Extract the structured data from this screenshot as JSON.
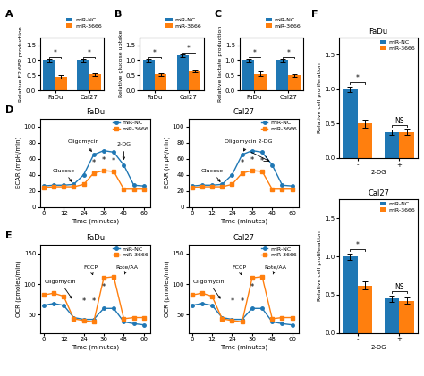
{
  "chart_data": [
    {
      "type": "bar",
      "panel_label": "A",
      "ylabel": "Relative F2,6BP production",
      "categories": [
        "FaDu",
        "Cal27"
      ],
      "series": [
        {
          "name": "miR-NC",
          "values": [
            1.0,
            1.0
          ],
          "errors": [
            0.04,
            0.04
          ]
        },
        {
          "name": "miR-3666",
          "values": [
            0.45,
            0.53
          ],
          "errors": [
            0.05,
            0.05
          ]
        }
      ],
      "ylim": [
        0,
        1.75
      ],
      "yticks": [
        {
          "value": 0,
          "label": "0.0"
        },
        {
          "value": 0.5,
          "label": "0.5"
        },
        {
          "value": 1.0,
          "label": "1.0"
        },
        {
          "value": 1.5,
          "label": "1.5"
        }
      ],
      "legend": "upper right",
      "significance": [
        "*",
        "*"
      ]
    },
    {
      "type": "bar",
      "panel_label": "B",
      "ylabel": "Relative glucose uptake",
      "categories": [
        "FaDu",
        "Cal27"
      ],
      "series": [
        {
          "name": "miR-NC",
          "values": [
            1.0,
            1.15
          ],
          "errors": [
            0.04,
            0.05
          ]
        },
        {
          "name": "miR-3666",
          "values": [
            0.53,
            0.63
          ],
          "errors": [
            0.05,
            0.04
          ]
        }
      ],
      "ylim": [
        0,
        1.75
      ],
      "yticks": [
        {
          "value": 0,
          "label": "0.0"
        },
        {
          "value": 0.5,
          "label": "0.5"
        },
        {
          "value": 1.0,
          "label": "1.0"
        },
        {
          "value": 1.5,
          "label": "1.5"
        }
      ],
      "legend": "upper right",
      "significance": [
        "*",
        "*"
      ]
    },
    {
      "type": "bar",
      "panel_label": "C",
      "ylabel": "Relative lactate production",
      "categories": [
        "FaDu",
        "Cal27"
      ],
      "series": [
        {
          "name": "miR-NC",
          "values": [
            1.0,
            1.0
          ],
          "errors": [
            0.05,
            0.04
          ]
        },
        {
          "name": "miR-3666",
          "values": [
            0.55,
            0.5
          ],
          "errors": [
            0.06,
            0.05
          ]
        }
      ],
      "ylim": [
        0,
        1.75
      ],
      "yticks": [
        {
          "value": 0,
          "label": "0.0"
        },
        {
          "value": 0.5,
          "label": "0.5"
        },
        {
          "value": 1.0,
          "label": "1.0"
        },
        {
          "value": 1.5,
          "label": "1.5"
        }
      ],
      "legend": "upper right",
      "significance": [
        "*",
        "*"
      ]
    },
    {
      "type": "line",
      "panel_label": "D",
      "title": "FaDu",
      "xlabel": "Time (minutes)",
      "ylabel": "ECAR (mpH/min)",
      "x": [
        0,
        6,
        12,
        18,
        24,
        30,
        36,
        42,
        48,
        54,
        60
      ],
      "series": [
        {
          "name": "miR-NC",
          "marker": "circle",
          "values": [
            26,
            27,
            27,
            28,
            40,
            65,
            70,
            68,
            52,
            27,
            26
          ]
        },
        {
          "name": "miR-3666",
          "marker": "square",
          "values": [
            24,
            25,
            25,
            25,
            28,
            42,
            45,
            44,
            22,
            22,
            22
          ]
        }
      ],
      "xlim": [
        -2,
        64
      ],
      "ylim": [
        0,
        110
      ],
      "xticks": [
        0,
        12,
        24,
        36,
        48,
        60
      ],
      "yticks": [
        0,
        20,
        40,
        60,
        80,
        100
      ],
      "legend": "upper right",
      "annotations": [
        {
          "text": "Glucose",
          "x": [
            18
          ],
          "y": [
            28
          ]
        },
        {
          "text": "Oligomycin",
          "x": [
            30
          ],
          "y": [
            66
          ]
        },
        {
          "text": "2-DG",
          "x": [
            48
          ],
          "y": [
            55
          ]
        }
      ],
      "significance": {
        "text": "*",
        "x": [
          30,
          36,
          42
        ],
        "y": [
          55,
          58,
          57
        ]
      }
    },
    {
      "type": "line",
      "title": "Cal27",
      "xlabel": "Time (minutes)",
      "ylabel": "ECAR (mpH/min)",
      "x": [
        0,
        6,
        12,
        18,
        24,
        30,
        36,
        42,
        48,
        54,
        60
      ],
      "series": [
        {
          "name": "miR-NC",
          "marker": "circle",
          "values": [
            26,
            27,
            27,
            28,
            40,
            65,
            70,
            68,
            52,
            27,
            26
          ]
        },
        {
          "name": "miR-3666",
          "marker": "square",
          "values": [
            24,
            25,
            25,
            25,
            28,
            42,
            45,
            44,
            22,
            22,
            22
          ]
        }
      ],
      "xlim": [
        -2,
        64
      ],
      "ylim": [
        0,
        110
      ],
      "xticks": [
        0,
        12,
        24,
        36,
        48,
        60
      ],
      "yticks": [
        0,
        20,
        40,
        60,
        80,
        100
      ],
      "legend": "upper right",
      "annotations": [
        {
          "text": "Glucose",
          "x": [
            18
          ],
          "y": [
            28
          ]
        },
        {
          "text": "Oligomycin 2-DG",
          "x": [
            30,
            48
          ],
          "y": [
            66,
            55
          ]
        }
      ],
      "significance": {
        "text": "*",
        "x": [
          30,
          36,
          42
        ],
        "y": [
          55,
          58,
          57
        ]
      }
    },
    {
      "type": "line",
      "panel_label": "E",
      "title": "FaDu",
      "xlabel": "Time (minutes)",
      "ylabel": "OCR (pmoles/min)",
      "x": [
        0,
        6,
        12,
        18,
        24,
        30,
        36,
        42,
        48,
        54,
        60
      ],
      "series": [
        {
          "name": "miR-NC",
          "marker": "circle",
          "values": [
            65,
            68,
            65,
            45,
            42,
            42,
            60,
            60,
            38,
            35,
            33
          ]
        },
        {
          "name": "miR-3666",
          "marker": "square",
          "values": [
            82,
            85,
            80,
            43,
            40,
            38,
            110,
            112,
            43,
            45,
            45
          ]
        }
      ],
      "xlim": [
        -2,
        64
      ],
      "ylim": [
        20,
        165
      ],
      "xticks": [
        0,
        12,
        24,
        36,
        48,
        60
      ],
      "yticks": [
        50,
        100,
        150
      ],
      "legend": "upper right",
      "annotations": [
        {
          "text": "Oligomycin",
          "x": [
            18
          ],
          "y": [
            72
          ]
        },
        {
          "text": "FCCP",
          "x": [
            30
          ],
          "y": [
            110
          ]
        },
        {
          "text": "Rote/AA",
          "x": [
            48
          ],
          "y": [
            112
          ]
        }
      ],
      "significance": {
        "text": "*",
        "x": [
          24,
          30,
          36
        ],
        "y": [
          72,
          72,
          95
        ]
      }
    },
    {
      "type": "line",
      "title": "Cal27",
      "xlabel": "Time (minutes)",
      "ylabel": "OCR (pmoles/min)",
      "x": [
        0,
        6,
        12,
        18,
        24,
        30,
        36,
        42,
        48,
        54,
        60
      ],
      "series": [
        {
          "name": "miR-NC",
          "marker": "circle",
          "values": [
            65,
            68,
            65,
            45,
            42,
            42,
            60,
            60,
            38,
            35,
            33
          ]
        },
        {
          "name": "miR-3666",
          "marker": "square",
          "values": [
            82,
            85,
            80,
            43,
            40,
            38,
            110,
            112,
            43,
            45,
            45
          ]
        }
      ],
      "xlim": [
        -2,
        64
      ],
      "ylim": [
        20,
        165
      ],
      "xticks": [
        0,
        12,
        24,
        36,
        48,
        60
      ],
      "yticks": [
        50,
        100,
        150
      ],
      "legend": "upper right",
      "annotations": [
        {
          "text": "Oligomycin",
          "x": [
            18
          ],
          "y": [
            72
          ]
        },
        {
          "text": "FCCP",
          "x": [
            30
          ],
          "y": [
            110
          ]
        },
        {
          "text": "Rote/AA",
          "x": [
            48
          ],
          "y": [
            112
          ]
        }
      ],
      "significance": {
        "text": "*",
        "x": [
          24,
          30,
          36
        ],
        "y": [
          72,
          72,
          95
        ]
      }
    },
    {
      "type": "bar",
      "panel_label": "F",
      "title": "FaDu",
      "ylabel": "Relative cell proliferation",
      "xlabel": "2-DG",
      "categories": [
        "-",
        "+"
      ],
      "series": [
        {
          "name": "miR-NC",
          "values": [
            1.0,
            0.37
          ],
          "errors": [
            0.04,
            0.04
          ]
        },
        {
          "name": "miR-3666",
          "values": [
            0.5,
            0.38
          ],
          "errors": [
            0.06,
            0.04
          ]
        }
      ],
      "ylim": [
        0,
        1.75
      ],
      "yticks": [
        {
          "value": 0,
          "label": "0.0"
        },
        {
          "value": 0.5,
          "label": "0.5"
        },
        {
          "value": 1.0,
          "label": "1.0"
        },
        {
          "value": 1.5,
          "label": "1.5"
        }
      ],
      "legend": "upper right",
      "significance": [
        "*",
        "NS"
      ]
    },
    {
      "type": "bar",
      "title": "Cal27",
      "ylabel": "Relative cell proliferation",
      "xlabel": "2-DG",
      "categories": [
        "-",
        "+"
      ],
      "series": [
        {
          "name": "miR-NC",
          "values": [
            1.0,
            0.45
          ],
          "errors": [
            0.04,
            0.04
          ]
        },
        {
          "name": "miR-3666",
          "values": [
            0.62,
            0.42
          ],
          "errors": [
            0.05,
            0.04
          ]
        }
      ],
      "ylim": [
        0,
        1.75
      ],
      "yticks": [
        {
          "value": 0,
          "label": "0.0"
        },
        {
          "value": 0.5,
          "label": "0.5"
        },
        {
          "value": 1.0,
          "label": "1.0"
        },
        {
          "value": 1.5,
          "label": "1.5"
        }
      ],
      "legend": "upper right",
      "significance": [
        "*",
        "NS"
      ]
    }
  ]
}
